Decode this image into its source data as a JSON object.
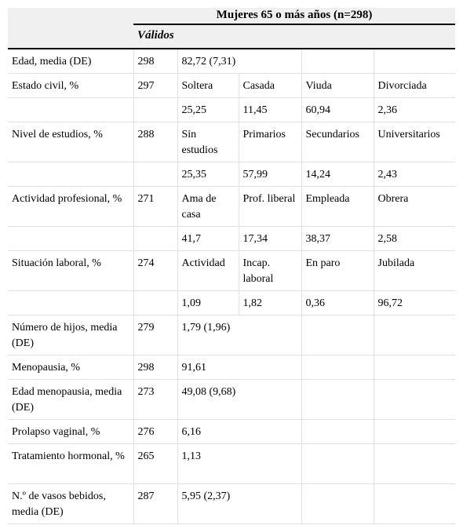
{
  "header": {
    "group_title": "Mujeres 65 o más años (n=298)",
    "validos_label": "Válidos"
  },
  "rows": [
    {
      "label": "Edad, media (DE)",
      "n": "298",
      "cells": [
        "82,72 (7,31)",
        "",
        "",
        ""
      ]
    },
    {
      "label": "Estado civil, %",
      "n": "297",
      "cells": [
        "Soltera",
        "Casada",
        "Viuda",
        "Divorciada"
      ]
    },
    {
      "label": "",
      "n": "",
      "cells": [
        "25,25",
        "11,45",
        "60,94",
        "2,36"
      ]
    },
    {
      "label": "Nivel de estudios, %",
      "n": "288",
      "cells": [
        "Sin estudios",
        "Primarios",
        "Secundarios",
        "Universitarios"
      ]
    },
    {
      "label": "",
      "n": "",
      "cells": [
        "25,35",
        "57,99",
        "14,24",
        "2,43"
      ]
    },
    {
      "label": "Actividad profesional, %",
      "n": "271",
      "cells": [
        "Ama de casa",
        "Prof. liberal",
        "Empleada",
        "Obrera"
      ]
    },
    {
      "label": "",
      "n": "",
      "cells": [
        "41,7",
        "17,34",
        "38,37",
        "2,58"
      ]
    },
    {
      "label": "Situación laboral, %",
      "n": "274",
      "cells": [
        "Actividad",
        "Incap. laboral",
        "En paro",
        "Jubilada"
      ]
    },
    {
      "label": "",
      "n": "",
      "cells": [
        "1,09",
        "1,82",
        "0,36",
        "96,72"
      ]
    },
    {
      "label": "Número de hijos, media (DE)",
      "n": "279",
      "cells": [
        "1,79 (1,96)",
        "",
        "",
        ""
      ]
    },
    {
      "label": "Menopausia, %",
      "n": "298",
      "cells": [
        "91,61",
        "",
        "",
        ""
      ]
    },
    {
      "label": "Edad menopausia, media (DE)",
      "n": "273",
      "cells": [
        "49,08 (9,68)",
        "",
        "",
        ""
      ]
    },
    {
      "label": "Prolapso vaginal, %",
      "n": "276",
      "cells": [
        "6,16",
        "",
        "",
        ""
      ]
    },
    {
      "label": "Tratamiento hormonal, %",
      "n": "265",
      "cells": [
        "1,13",
        "",
        "",
        ""
      ]
    },
    {
      "label": "N.º de vasos bebidos, media (DE)",
      "n": "287",
      "cells": [
        "5,95 (2,37)",
        "",
        "",
        ""
      ]
    }
  ]
}
